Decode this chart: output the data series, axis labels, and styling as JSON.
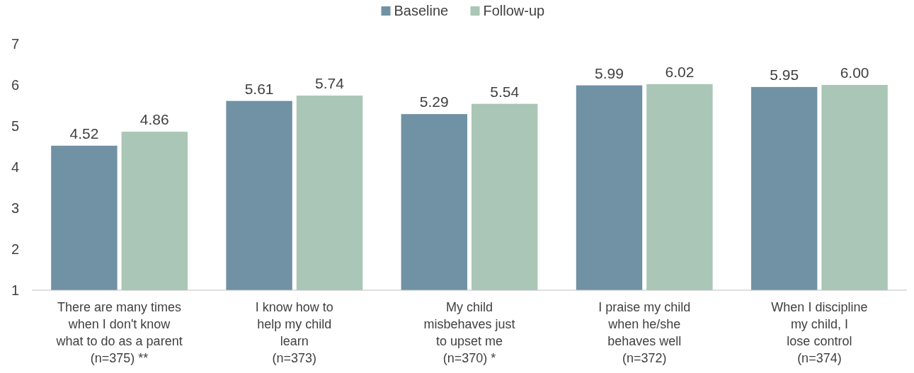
{
  "chart_data": {
    "type": "bar",
    "categories": [
      "There are many times\nwhen I don't know\nwhat to do as a parent\n(n=375) **",
      "I know how to\nhelp my child\nlearn\n(n=373)",
      "My child\nmisbehaves just\nto upset me\n(n=370) *",
      "I praise my child\nwhen he/she\nbehaves well\n(n=372)",
      "When I discipline\nmy child, I\nlose control\n(n=374)"
    ],
    "series": [
      {
        "name": "Baseline",
        "color": "#7191a5",
        "values": [
          4.52,
          5.61,
          5.29,
          5.99,
          5.95
        ],
        "value_labels": [
          "4.52",
          "5.61",
          "5.29",
          "5.99",
          "5.95"
        ]
      },
      {
        "name": "Follow-up",
        "color": "#aac6b6",
        "values": [
          4.86,
          5.74,
          5.54,
          6.02,
          6.0
        ],
        "value_labels": [
          "4.86",
          "5.74",
          "5.54",
          "6.02",
          "6.00"
        ]
      }
    ],
    "ylim": [
      1,
      7
    ],
    "yticks": [
      1,
      2,
      3,
      4,
      5,
      6,
      7
    ],
    "grid": false,
    "legend": "top"
  }
}
